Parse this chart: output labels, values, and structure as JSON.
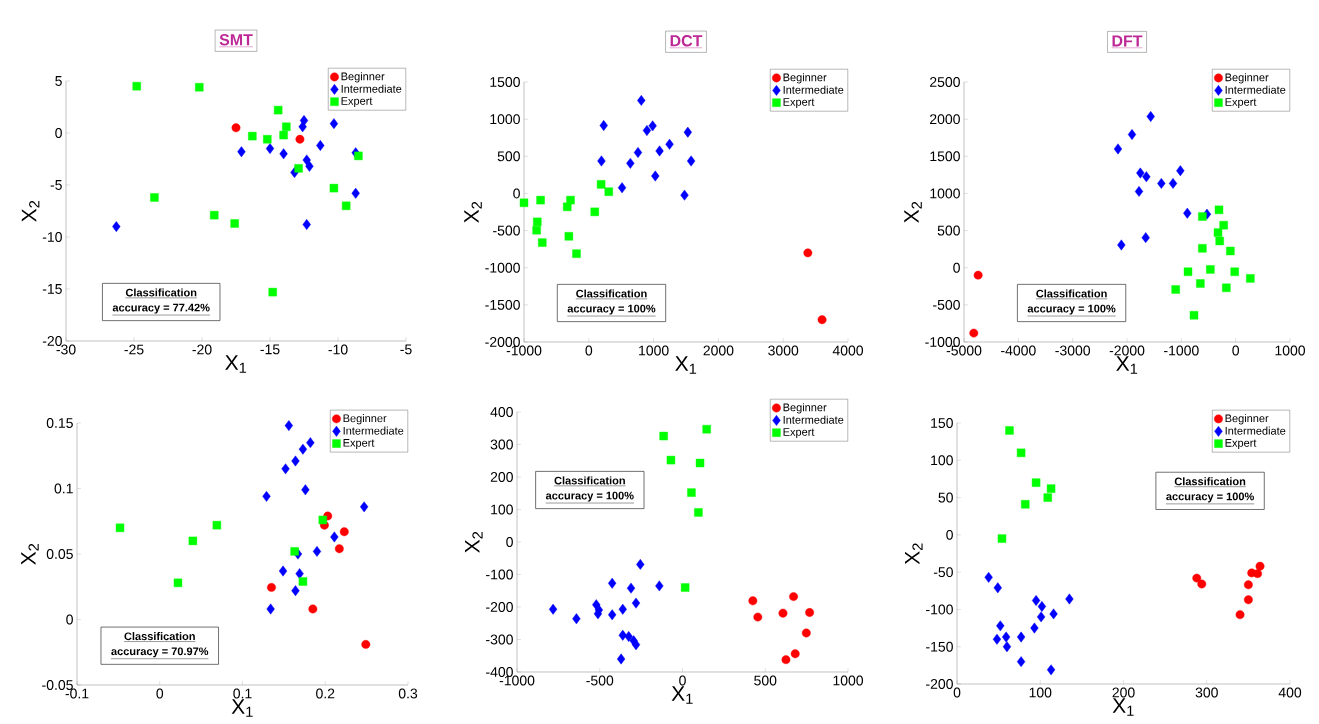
{
  "chart_data": [
    {
      "type": "scatter",
      "title": "SMT",
      "xlabel": "X$_{1}$",
      "ylabel": "X$_{2}$",
      "annotations": [
        "Classification",
        "accuracy = 77.42%"
      ],
      "xlim": [
        -30,
        -5
      ],
      "ylim": [
        -20,
        5
      ],
      "xticks": [
        -30,
        -25,
        -20,
        -15,
        -10,
        -5
      ],
      "yticks": [
        -20,
        -15,
        -10,
        -5,
        0,
        5
      ],
      "legend": "top right",
      "series": [
        {
          "name": "Beginner",
          "color": "#ff0000",
          "marker": "circle",
          "x": [
            -17.5,
            -12.8
          ],
          "values": [
            0.5,
            -0.6
          ]
        },
        {
          "name": "Intermediate",
          "color": "#0000ff",
          "marker": "diamond",
          "x": [
            -26.3,
            -17.1,
            -15,
            -14,
            -12.6,
            -12.5,
            -12.3,
            -12.1,
            -13.2,
            -11.3,
            -10.3,
            -8.7,
            -8.7,
            -12.3
          ],
          "values": [
            -9,
            -1.8,
            -1.5,
            -2,
            0.6,
            1.2,
            -2.6,
            -3.2,
            -3.8,
            -1.2,
            0.9,
            -1.9,
            -5.8,
            -8.8
          ]
        },
        {
          "name": "Expert",
          "color": "#00ff00",
          "marker": "square",
          "x": [
            -24.8,
            -20.2,
            -14.4,
            -13.8,
            -14,
            -16.3,
            -15.2,
            -12.9,
            -8.5,
            -10.3,
            -9.4,
            -23.5,
            -19.1,
            -17.6,
            -14.8
          ],
          "values": [
            4.5,
            4.4,
            2.2,
            0.6,
            -0.2,
            -0.3,
            -0.6,
            -3.4,
            -2.2,
            -5.3,
            -7,
            -6.2,
            -7.9,
            -8.7,
            -15.3
          ]
        }
      ]
    },
    {
      "type": "scatter",
      "title": "DCT",
      "xlabel": "X$_{1}$",
      "ylabel": "X$_{2}$",
      "annotations": [
        "Classification",
        "accuracy = 100%"
      ],
      "xlim": [
        -1000,
        4000
      ],
      "ylim": [
        -2000,
        1500
      ],
      "xticks": [
        -1000,
        0,
        1000,
        2000,
        3000,
        4000
      ],
      "yticks": [
        -2000,
        -1500,
        -1000,
        -500,
        0,
        500,
        1000,
        1500
      ],
      "legend": "top right",
      "series": [
        {
          "name": "Beginner",
          "color": "#ff0000",
          "marker": "circle",
          "x": [
            3380,
            3600
          ],
          "values": [
            -800,
            -1700
          ]
        },
        {
          "name": "Intermediate",
          "color": "#0000ff",
          "marker": "diamond",
          "x": [
            230,
            195,
            513,
            641,
            759,
            810,
            897,
            985,
            1026,
            1092,
            1246,
            1477,
            1528,
            1579
          ],
          "values": [
            915,
            437,
            77,
            405,
            550,
            1252,
            847,
            910,
            234,
            572,
            662,
            -23,
            824,
            437
          ]
        },
        {
          "name": "Expert",
          "color": "#00ff00",
          "marker": "square",
          "x": [
            -1000,
            -744,
            -795,
            -805,
            -718,
            -333,
            -282,
            -308,
            -190,
            92,
            190,
            308
          ],
          "values": [
            -126,
            -90,
            -383,
            -495,
            -662,
            -180,
            -90,
            -577,
            -811,
            -248,
            122,
            23
          ]
        }
      ]
    },
    {
      "type": "scatter",
      "title": "DFT",
      "xlabel": "X$_{1}$",
      "ylabel": "X$_{2}$",
      "annotations": [
        "Classification",
        "accuracy = 100%"
      ],
      "xlim": [
        -5000,
        1000
      ],
      "ylim": [
        -1000,
        2500
      ],
      "xticks": [
        -5000,
        -4000,
        -3000,
        -2000,
        -1000,
        0,
        1000
      ],
      "yticks": [
        -1000,
        -500,
        0,
        500,
        1000,
        1500,
        2000,
        2500
      ],
      "legend": "top right",
      "series": [
        {
          "name": "Beginner",
          "color": "#ff0000",
          "marker": "circle",
          "x": [
            -4740,
            -4820
          ],
          "values": [
            -100,
            -880
          ]
        },
        {
          "name": "Intermediate",
          "color": "#0000ff",
          "marker": "diamond",
          "x": [
            -2166,
            -1908,
            -1564,
            -1755,
            -1644,
            -1779,
            -1368,
            -1153,
            -1018,
            -890,
            -528,
            -2104,
            -1656
          ],
          "values": [
            1599,
            1793,
            2036,
            1275,
            1225,
            1027,
            1135,
            1135,
            1306,
            734,
            721,
            306,
            405
          ]
        },
        {
          "name": "Expert",
          "color": "#00ff00",
          "marker": "square",
          "x": [
            -613,
            -307,
            -221,
            -325,
            -294,
            -98,
            -613,
            -877,
            -466,
            -650,
            -1104,
            -767,
            -172,
            -18,
            270
          ],
          "values": [
            689,
            779,
            572,
            473,
            360,
            225,
            261,
            -54,
            -23,
            -212,
            -293,
            -640,
            -270,
            -54,
            -144
          ]
        }
      ]
    },
    {
      "type": "scatter",
      "xlabel": "X$_{1}$",
      "ylabel": "X$_{2}$",
      "annotations": [
        "Classification",
        "accuracy = 70.97%"
      ],
      "xlim": [
        -0.1,
        0.3
      ],
      "ylim": [
        -0.05,
        0.15
      ],
      "xticks": [
        -0.1,
        0,
        0.1,
        0.2,
        0.3
      ],
      "yticks": [
        -0.05,
        0,
        0.05,
        0.1,
        0.15
      ],
      "legend": "top right",
      "series": [
        {
          "name": "Beginner",
          "color": "#ff0000",
          "marker": "circle",
          "x": [
            0.135,
            0.185,
            0.249,
            0.203,
            0.199,
            0.223,
            0.217
          ],
          "values": [
            0.0245,
            0.008,
            -0.019,
            0.079,
            0.072,
            0.067,
            0.054
          ]
        },
        {
          "name": "Intermediate",
          "color": "#0000ff",
          "marker": "diamond",
          "x": [
            0.156,
            0.152,
            0.164,
            0.173,
            0.182,
            0.129,
            0.176,
            0.247,
            0.211,
            0.19,
            0.167,
            0.149,
            0.169,
            0.164,
            0.134
          ],
          "values": [
            0.148,
            0.115,
            0.121,
            0.13,
            0.135,
            0.094,
            0.099,
            0.086,
            0.063,
            0.052,
            0.05,
            0.037,
            0.035,
            0.022,
            0.008
          ]
        },
        {
          "name": "Expert",
          "color": "#00ff00",
          "marker": "square",
          "x": [
            -0.048,
            0.069,
            0.04,
            0.022,
            0.197,
            0.163,
            0.173
          ],
          "values": [
            0.07,
            0.072,
            0.06,
            0.028,
            0.076,
            0.052,
            0.029
          ]
        }
      ]
    },
    {
      "type": "scatter",
      "xlabel": "X$_{1}$",
      "ylabel": "X$_{2}$",
      "annotations": [
        "Classification",
        "accuracy = 100%"
      ],
      "xlim": [
        -1000,
        1000
      ],
      "ylim": [
        -400,
        400
      ],
      "xticks": [
        -1000,
        -500,
        0,
        500,
        1000
      ],
      "yticks": [
        -400,
        -300,
        -200,
        -100,
        0,
        100,
        200,
        300,
        400
      ],
      "legend": "top right",
      "series": [
        {
          "name": "Beginner",
          "color": "#ff0000",
          "marker": "circle",
          "x": [
            425,
            455,
            607,
            671,
            768,
            748,
            681,
            625
          ],
          "values": [
            -181,
            -231,
            -219,
            -168,
            -217,
            -280,
            -344,
            -362
          ]
        },
        {
          "name": "Intermediate",
          "color": "#0000ff",
          "marker": "diamond",
          "x": [
            -782,
            -641,
            -521,
            -505,
            -511,
            -425,
            -425,
            -361,
            -311,
            -281,
            -255,
            -140,
            -361,
            -325,
            -295,
            -281,
            -371
          ],
          "values": [
            -207,
            -236,
            -193,
            -209,
            -221,
            -127,
            -224,
            -207,
            -142,
            -188,
            -69,
            -135,
            -287,
            -291,
            -304,
            -316,
            -360
          ]
        },
        {
          "name": "Expert",
          "color": "#00ff00",
          "marker": "square",
          "x": [
            -114,
            146,
            -70,
            106,
            54,
            96,
            16
          ],
          "values": [
            326,
            347,
            252,
            243,
            152,
            91,
            -140
          ]
        }
      ]
    },
    {
      "type": "scatter",
      "xlabel": "X$_{1}$",
      "ylabel": "X$_{2}$",
      "annotations": [
        "Classification",
        "accuracy = 100%"
      ],
      "xlim": [
        0,
        400
      ],
      "ylim": [
        -200,
        150
      ],
      "xticks": [
        0,
        100,
        200,
        300,
        400
      ],
      "yticks": [
        -200,
        -150,
        -100,
        -50,
        0,
        50,
        100,
        150
      ],
      "legend": "top right",
      "series": [
        {
          "name": "Beginner",
          "color": "#ff0000",
          "marker": "circle",
          "x": [
            288,
            294,
            340,
            350,
            350,
            354,
            361,
            364
          ],
          "values": [
            -58,
            -66,
            -107,
            -87,
            -67,
            -51,
            -52,
            -42
          ]
        },
        {
          "name": "Intermediate",
          "color": "#0000ff",
          "marker": "diamond",
          "x": [
            38,
            49,
            52,
            48,
            59,
            60,
            77,
            77,
            93,
            95,
            102,
            101,
            116,
            135,
            113
          ],
          "values": [
            -57,
            -71,
            -122,
            -140,
            -137,
            -150,
            -137,
            -170,
            -125,
            -88,
            -96,
            -110,
            -106,
            -86,
            -181
          ]
        },
        {
          "name": "Expert",
          "color": "#00ff00",
          "marker": "square",
          "x": [
            63,
            77,
            95,
            113,
            109,
            82,
            54
          ],
          "values": [
            140,
            110,
            70,
            62,
            50,
            41,
            -5
          ]
        }
      ]
    }
  ]
}
